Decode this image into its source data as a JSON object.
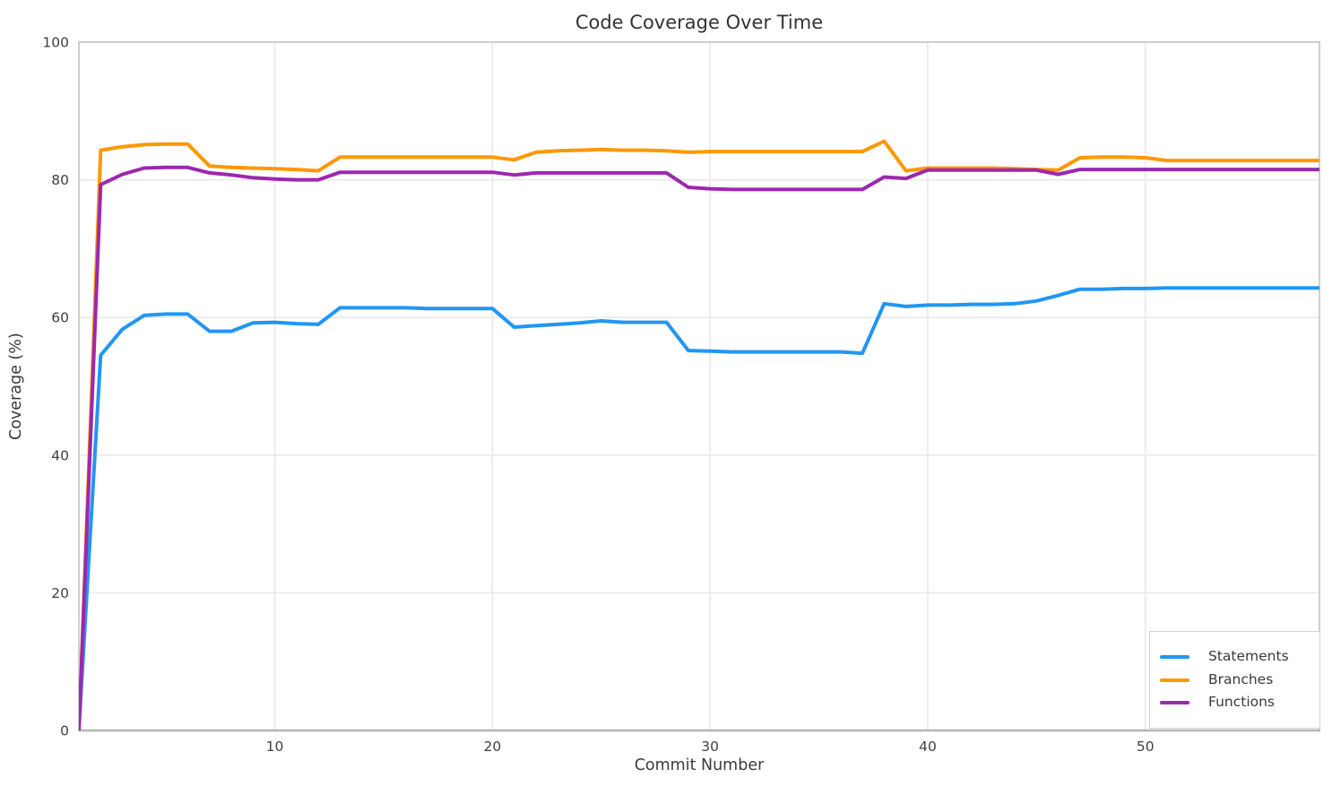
{
  "chart_data": {
    "type": "line",
    "title": "Code Coverage Over Time",
    "xlabel": "Commit Number",
    "ylabel": "Coverage (%)",
    "xlim": [
      1,
      58
    ],
    "ylim": [
      0,
      100
    ],
    "xticks": [
      10,
      20,
      30,
      40,
      50
    ],
    "yticks": [
      0,
      20,
      40,
      60,
      80,
      100
    ],
    "grid": true,
    "legend_position": "lower right",
    "background_color": "#ffffff",
    "grid_color": "#e9e9e9",
    "spine_color": "#cfcfcf",
    "bottom_spine_color": "#b5b5b5",
    "tick_label_color": "#404040",
    "x": [
      1,
      2,
      3,
      4,
      5,
      6,
      7,
      8,
      9,
      10,
      11,
      12,
      13,
      14,
      15,
      16,
      17,
      18,
      19,
      20,
      21,
      22,
      23,
      24,
      25,
      26,
      27,
      28,
      29,
      30,
      31,
      32,
      33,
      34,
      35,
      36,
      37,
      38,
      39,
      40,
      41,
      42,
      43,
      44,
      45,
      46,
      47,
      48,
      49,
      50,
      51,
      52,
      53,
      54,
      55,
      56,
      57,
      58
    ],
    "series": [
      {
        "name": "Statements",
        "color": "#2196F3",
        "values": [
          0,
          54.5,
          58.3,
          60.3,
          60.5,
          60.5,
          58,
          58,
          59.2,
          59.3,
          59.1,
          59,
          61.4,
          61.4,
          61.4,
          61.4,
          61.3,
          61.3,
          61.3,
          61.3,
          58.6,
          58.8,
          59,
          59.2,
          59.5,
          59.3,
          59.3,
          59.3,
          55.2,
          55.1,
          55,
          55,
          55,
          55,
          55,
          55,
          54.8,
          62,
          61.6,
          61.8,
          61.8,
          61.9,
          61.9,
          62,
          62.4,
          63.2,
          64.1,
          64.1,
          64.2,
          64.2,
          64.3,
          64.3,
          64.3,
          64.3,
          64.3,
          64.3,
          64.3,
          64.3
        ]
      },
      {
        "name": "Branches",
        "color": "#FF9800",
        "values": [
          0,
          84.3,
          84.8,
          85.1,
          85.2,
          85.2,
          82,
          81.8,
          81.7,
          81.6,
          81.5,
          81.3,
          83.3,
          83.3,
          83.3,
          83.3,
          83.3,
          83.3,
          83.3,
          83.3,
          82.9,
          84,
          84.2,
          84.3,
          84.4,
          84.3,
          84.3,
          84.2,
          84,
          84.1,
          84.1,
          84.1,
          84.1,
          84.1,
          84.1,
          84.1,
          84.1,
          85.6,
          81.3,
          81.7,
          81.7,
          81.7,
          81.7,
          81.6,
          81.5,
          81.4,
          83.2,
          83.3,
          83.3,
          83.2,
          82.8,
          82.8,
          82.8,
          82.8,
          82.8,
          82.8,
          82.8,
          82.8
        ]
      },
      {
        "name": "Functions",
        "color": "#9C27B0",
        "values": [
          0,
          79.3,
          80.8,
          81.7,
          81.8,
          81.8,
          81,
          80.7,
          80.3,
          80.1,
          80,
          80,
          81.1,
          81.1,
          81.1,
          81.1,
          81.1,
          81.1,
          81.1,
          81.1,
          80.7,
          81,
          81,
          81,
          81,
          81,
          81,
          81,
          78.9,
          78.7,
          78.6,
          78.6,
          78.6,
          78.6,
          78.6,
          78.6,
          78.6,
          80.4,
          80.2,
          81.4,
          81.4,
          81.4,
          81.4,
          81.4,
          81.4,
          80.8,
          81.5,
          81.5,
          81.5,
          81.5,
          81.5,
          81.5,
          81.5,
          81.5,
          81.5,
          81.5,
          81.5,
          81.5
        ]
      }
    ]
  }
}
